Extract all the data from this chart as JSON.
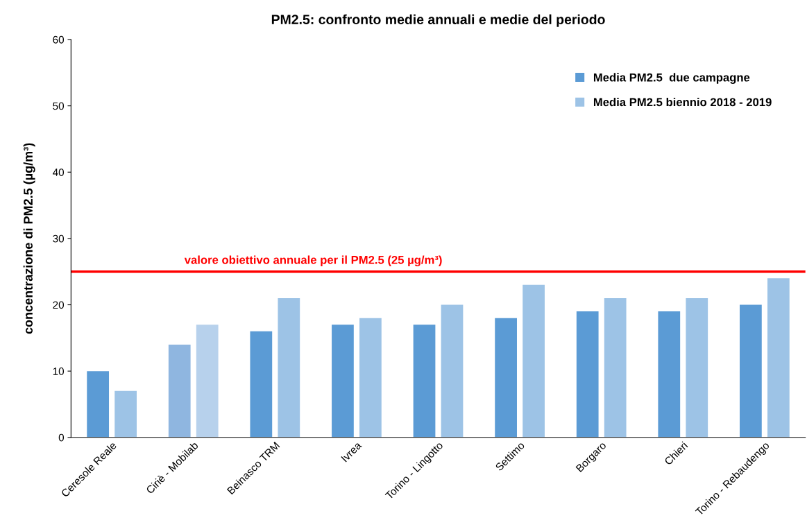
{
  "chart_data": {
    "type": "bar",
    "title": "PM2.5: confronto medie annuali e medie del periodo",
    "ylabel": "concentrazione di PM2.5 (µg/m³)",
    "categories": [
      "Ceresole Reale",
      "Ciriè - Mobilab",
      "Beinasco TRM",
      "Ivrea",
      "Torino - Lingotto",
      "Settimo",
      "Borgaro",
      "Chieri",
      "Torino - Rebaudengo"
    ],
    "series": [
      {
        "name": "Media PM2.5  due campagne",
        "color": "#5b9bd5",
        "colors": [
          "#5b9bd5",
          "#8fb6e0",
          "#5b9bd5",
          "#5b9bd5",
          "#5b9bd5",
          "#5b9bd5",
          "#5b9bd5",
          "#5b9bd5",
          "#5b9bd5"
        ],
        "values": [
          10,
          14,
          16,
          17,
          17,
          18,
          19,
          19,
          20
        ]
      },
      {
        "name": "Media PM2.5 biennio 2018 - 2019",
        "color": "#9dc3e6",
        "colors": [
          "#9dc3e6",
          "#b7d1ec",
          "#9dc3e6",
          "#9dc3e6",
          "#9dc3e6",
          "#9dc3e6",
          "#9dc3e6",
          "#9dc3e6",
          "#9dc3e6"
        ],
        "values": [
          7,
          17,
          21,
          18,
          20,
          23,
          21,
          21,
          24
        ]
      }
    ],
    "ylim": [
      0,
      60
    ],
    "yticks": [
      0,
      10,
      20,
      30,
      40,
      50,
      60
    ],
    "ref_lines": [
      {
        "axis": "y",
        "value": 25,
        "label": "valore obiettivo annuale per il PM2.5 (25 µg/m³)",
        "color": "#ff0000",
        "line_style": "solid"
      }
    ],
    "legend": "top right",
    "grid": false
  }
}
